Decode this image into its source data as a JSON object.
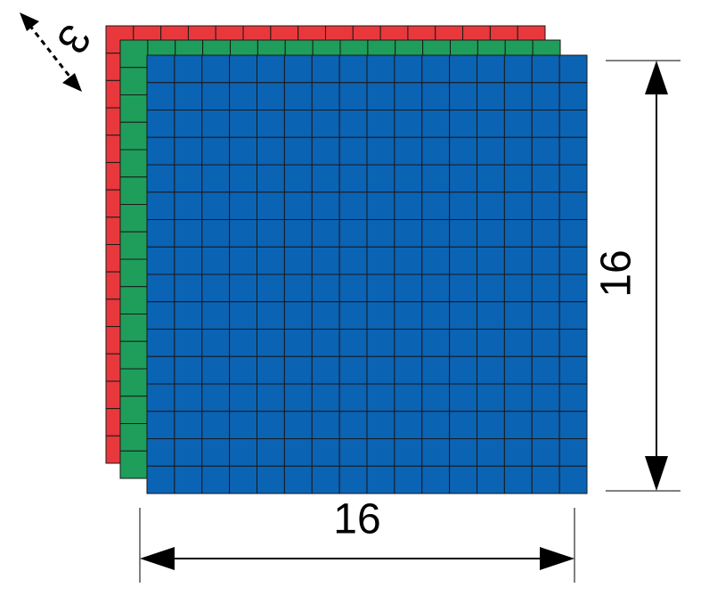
{
  "diagram": {
    "grid_rows": 16,
    "grid_cols": 16,
    "channels": [
      {
        "name": "red-layer",
        "color": "#e8383c"
      },
      {
        "name": "green-layer",
        "color": "#1e9e5a"
      },
      {
        "name": "blue-layer",
        "color": "#0b63b4"
      }
    ],
    "grid_line_color": "#1a1a1a",
    "labels": {
      "depth": "3",
      "height": "16",
      "width": "16"
    }
  }
}
